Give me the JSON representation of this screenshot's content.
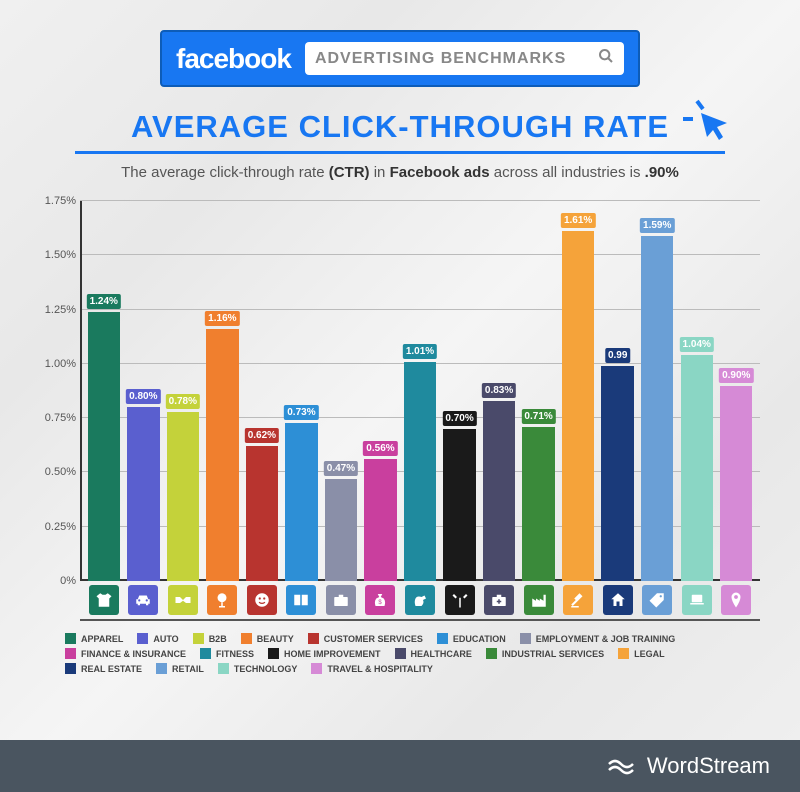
{
  "header": {
    "brand": "facebook",
    "search_text": "ADVERTISING BENCHMARKS"
  },
  "title": "AVERAGE CLICK-THROUGH RATE",
  "subtitle_parts": {
    "p1": "The average click-through rate ",
    "p2": "(CTR)",
    "p3": " in ",
    "p4": "Facebook ads",
    "p5": " across all industries is ",
    "p6": ".90%"
  },
  "footer_brand": "WordStream",
  "chart": {
    "type": "bar",
    "ylim": [
      0,
      1.75
    ],
    "yticks": [
      "0%",
      "0.25%",
      "0.50%",
      "0.75%",
      "1.00%",
      "1.25%",
      "1.50%",
      "1.75%"
    ],
    "ytick_values": [
      0,
      0.25,
      0.5,
      0.75,
      1.0,
      1.25,
      1.5,
      1.75
    ],
    "grid_color": "#bbbbbb",
    "axis_color": "#333333",
    "label_fontsize": 10,
    "bars": [
      {
        "name": "APPAREL",
        "value": 1.24,
        "label": "1.24%",
        "color": "#1a7a5e",
        "icon": "tshirt"
      },
      {
        "name": "AUTO",
        "value": 0.8,
        "label": "0.80%",
        "color": "#5a5fcf",
        "icon": "car"
      },
      {
        "name": "B2B",
        "value": 0.78,
        "label": "0.78%",
        "color": "#c4d23a",
        "icon": "handshake"
      },
      {
        "name": "BEAUTY",
        "value": 1.16,
        "label": "1.16%",
        "color": "#f07f2e",
        "icon": "mirror"
      },
      {
        "name": "CUSTOMER SERVICES",
        "value": 0.62,
        "label": "0.62%",
        "color": "#b8342f",
        "icon": "face"
      },
      {
        "name": "EDUCATION",
        "value": 0.73,
        "label": "0.73%",
        "color": "#2d8fd6",
        "icon": "book"
      },
      {
        "name": "EMPLOYMENT & JOB TRAINING",
        "value": 0.47,
        "label": "0.47%",
        "color": "#8a8fa8",
        "icon": "briefcase"
      },
      {
        "name": "FINANCE & INSURANCE",
        "value": 0.56,
        "label": "0.56%",
        "color": "#c93f9e",
        "icon": "moneybag"
      },
      {
        "name": "FITNESS",
        "value": 1.01,
        "label": "1.01%",
        "color": "#1f8a9e",
        "icon": "flex"
      },
      {
        "name": "HOME IMPROVEMENT",
        "value": 0.7,
        "label": "0.70%",
        "color": "#1a1a1a",
        "icon": "tools"
      },
      {
        "name": "HEALTHCARE",
        "value": 0.83,
        "label": "0.83%",
        "color": "#4a4a6a",
        "icon": "medkit"
      },
      {
        "name": "INDUSTRIAL SERVICES",
        "value": 0.71,
        "label": "0.71%",
        "color": "#3a8a3a",
        "icon": "factory"
      },
      {
        "name": "LEGAL",
        "value": 1.61,
        "label": "1.61%",
        "color": "#f5a33a",
        "icon": "gavel"
      },
      {
        "name": "REAL ESTATE",
        "value": 0.99,
        "label": "0.99",
        "color": "#1a3a7a",
        "icon": "home"
      },
      {
        "name": "RETAIL",
        "value": 1.59,
        "label": "1.59%",
        "color": "#6a9fd6",
        "icon": "tag"
      },
      {
        "name": "TECHNOLOGY",
        "value": 1.04,
        "label": "1.04%",
        "color": "#8ad6c4",
        "icon": "laptop"
      },
      {
        "name": "TRAVEL & HOSPITALITY",
        "value": 0.9,
        "label": "0.90%",
        "color": "#d68ad6",
        "icon": "pin"
      }
    ]
  }
}
